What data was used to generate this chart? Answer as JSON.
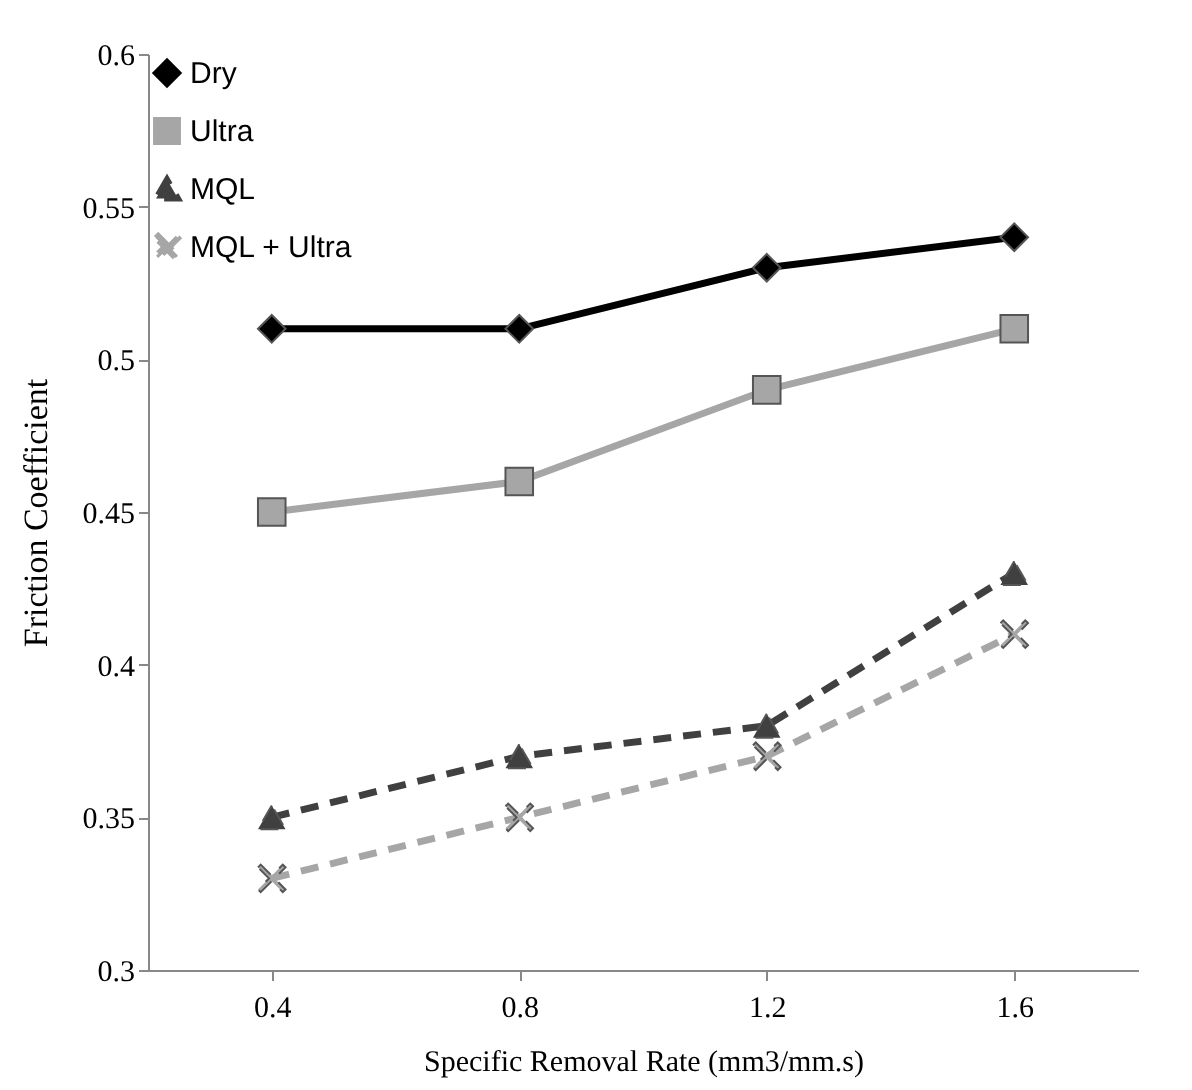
{
  "chart_data": {
    "type": "line",
    "xlabel": "Specific Removal Rate (mm3/mm.s)",
    "ylabel": "Friction Coefficient",
    "categories": [
      "0.4",
      "0.8",
      "1.2",
      "1.6"
    ],
    "ylim": [
      0.3,
      0.6
    ],
    "yticks": [
      0.3,
      0.35,
      0.4,
      0.45,
      0.5,
      0.55,
      0.6
    ],
    "legend": "top left",
    "series": [
      {
        "name": "Dry",
        "color": "#000000",
        "marker": "diamond",
        "line_style": "solid",
        "values": [
          0.51,
          0.51,
          0.53,
          0.54
        ]
      },
      {
        "name": "Ultra",
        "color": "#a6a6a6",
        "marker": "square",
        "line_style": "solid",
        "values": [
          0.45,
          0.46,
          0.49,
          0.51
        ]
      },
      {
        "name": "MQL",
        "color": "#404040",
        "marker": "triangle",
        "line_style": "dashed",
        "values": [
          0.35,
          0.37,
          0.38,
          0.43
        ]
      },
      {
        "name": "MQL + Ultra",
        "color": "#a6a6a6",
        "marker": "cross",
        "line_style": "dashed",
        "values": [
          0.33,
          0.35,
          0.37,
          0.41
        ]
      }
    ]
  }
}
